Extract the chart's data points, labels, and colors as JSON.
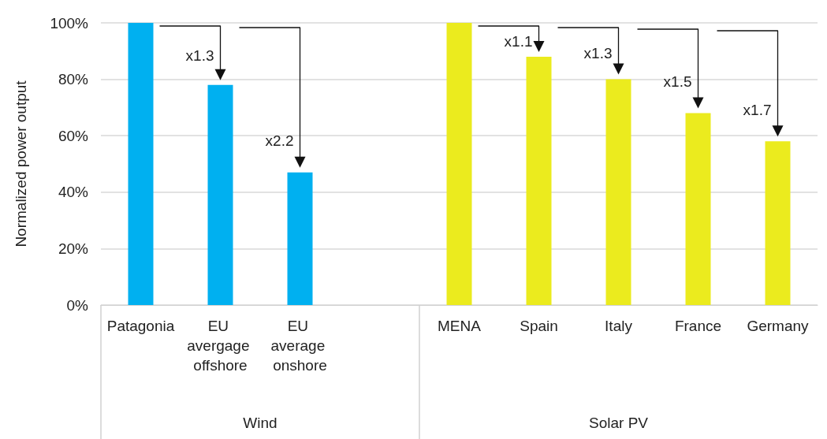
{
  "chart_data": {
    "type": "bar",
    "ylabel": "Normalized power output",
    "categories": [
      "Patagonia",
      "EU avergage offshore",
      "EU average onshore",
      null,
      "MENA",
      "Spain",
      "Italy",
      "France",
      "Germany"
    ],
    "values": [
      100,
      78,
      47,
      null,
      100,
      88,
      80,
      68,
      58
    ],
    "colors": [
      "#00b0f0",
      "#00b0f0",
      "#00b0f0",
      null,
      "#ebeb1e",
      "#ebeb1e",
      "#ebeb1e",
      "#ebeb1e",
      "#ebeb1e"
    ],
    "ylim": [
      0,
      100
    ],
    "yticks": [
      {
        "value": 0,
        "label": "0%"
      },
      {
        "value": 20,
        "label": "20%"
      },
      {
        "value": 40,
        "label": "40%"
      },
      {
        "value": 60,
        "label": "60%"
      },
      {
        "value": 80,
        "label": "80%"
      },
      {
        "value": 100,
        "label": "100%"
      }
    ],
    "grid": "y",
    "annotations": [
      {
        "text": "x1.3",
        "x": "EU avergage offshore",
        "y": 78
      },
      {
        "text": "x2.2",
        "x": "EU average onshore",
        "y": 47
      },
      {
        "text": "x1.1",
        "x": "Spain",
        "y": 88
      },
      {
        "text": "x1.3",
        "x": "Italy",
        "y": 80
      },
      {
        "text": "x1.5",
        "x": "France",
        "y": 68
      },
      {
        "text": "x1.7",
        "x": "Germany",
        "y": 58
      },
      "Wind",
      "Solar PV"
    ]
  }
}
